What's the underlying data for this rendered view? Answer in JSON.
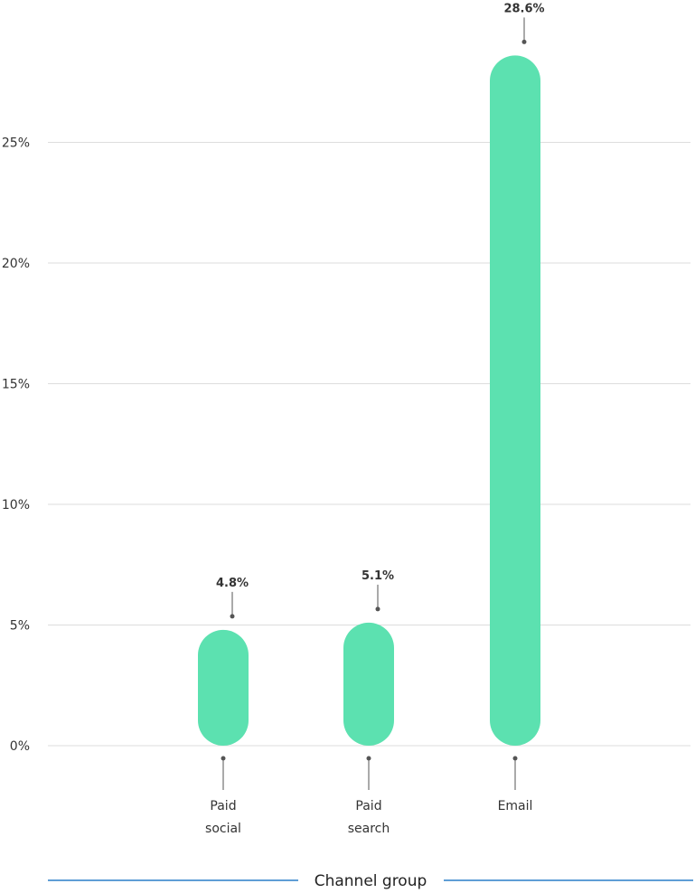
{
  "chart_data": {
    "type": "bar",
    "categories": [
      "Paid social",
      "Paid search",
      "Email"
    ],
    "category_label_lines": [
      [
        "Paid",
        "social"
      ],
      [
        "Paid",
        "search"
      ],
      [
        "Email"
      ]
    ],
    "values": [
      4.8,
      5.1,
      28.6
    ],
    "value_labels": [
      "4.8%",
      "5.1%",
      "28.6%"
    ],
    "xlabel": "Channel group",
    "ylabel": "",
    "ylim": [
      0,
      28.6
    ],
    "yticks": [
      0,
      5,
      10,
      15,
      20,
      25
    ],
    "ytick_labels": [
      "0%",
      "5%",
      "10%",
      "15%",
      "20%",
      "25%"
    ],
    "grid": true,
    "legend": "none",
    "colors": {
      "bar": "#5ce1b0",
      "grid": "#dddddd",
      "axis_title_line": "#2a7fc9",
      "leader": "#555555",
      "text": "#333333"
    }
  }
}
